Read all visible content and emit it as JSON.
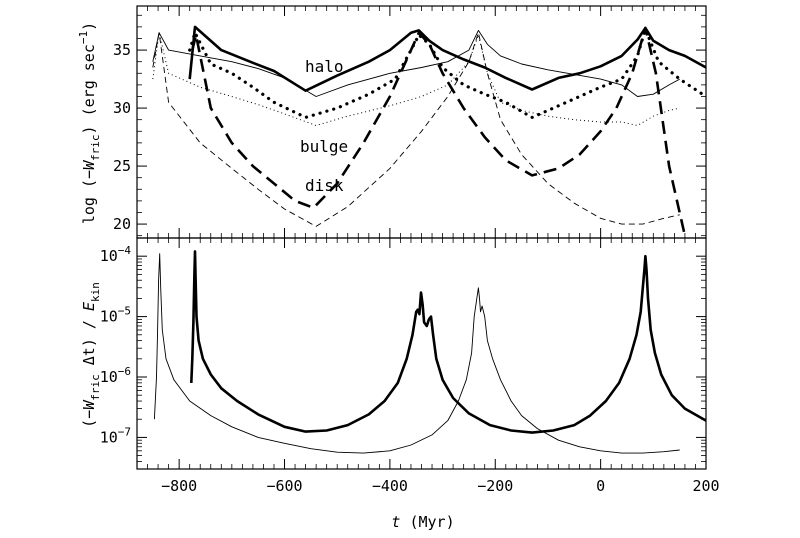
{
  "chart_data": [
    {
      "type": "line",
      "ylabel": "log (−W_fric) (erg sec⁻¹)",
      "ylabel_parts": {
        "pre": "log (−",
        "var": "W",
        "sub": "fric",
        "post": ") (erg sec",
        "sup": "−1",
        "close": ")"
      },
      "xlim": [
        -880,
        200
      ],
      "ylim": [
        18.8,
        38.8
      ],
      "y_ticks": [
        "20",
        "25",
        "30",
        "35"
      ],
      "y_tick_values": [
        20,
        25,
        30,
        35
      ],
      "x_tick_values": [
        -800,
        -600,
        -400,
        -200,
        0,
        200
      ],
      "annotations": [
        "halo",
        "bulge",
        "disk"
      ],
      "series": [
        {
          "style": "thick-solid",
          "x": [
            -780,
            -770,
            -720,
            -660,
            -620,
            -560,
            -500,
            -440,
            -400,
            -360,
            -345,
            -325,
            -300,
            -260,
            -220,
            -180,
            -130,
            -80,
            -40,
            0,
            40,
            70,
            85,
            100,
            130,
            160,
            200
          ],
          "y": [
            32.5,
            37.0,
            35.0,
            33.9,
            33.2,
            31.5,
            32.8,
            34.0,
            35.0,
            36.5,
            36.7,
            35.8,
            35.0,
            34.2,
            33.5,
            32.6,
            31.6,
            32.6,
            33.0,
            33.6,
            34.5,
            35.9,
            36.9,
            35.8,
            35.0,
            34.5,
            33.5
          ]
        },
        {
          "style": "thin-solid",
          "x": [
            -850,
            -838,
            -820,
            -760,
            -700,
            -650,
            -600,
            -540,
            -480,
            -400,
            -340,
            -290,
            -250,
            -232,
            -215,
            -190,
            -150,
            -100,
            -50,
            0,
            40,
            70,
            100,
            130,
            150
          ],
          "y": [
            34.0,
            36.5,
            35.0,
            34.5,
            34.0,
            33.4,
            32.6,
            31.0,
            32.0,
            33.0,
            33.5,
            34.0,
            35.0,
            36.7,
            35.5,
            34.5,
            33.8,
            33.3,
            32.9,
            32.5,
            32.0,
            31.0,
            31.2,
            32.0,
            32.5
          ]
        },
        {
          "style": "thick-dotted",
          "x": [
            -780,
            -770,
            -740,
            -700,
            -660,
            -620,
            -560,
            -500,
            -440,
            -390,
            -360,
            -345,
            -325,
            -300,
            -260,
            -220,
            -180,
            -130,
            -80,
            -40,
            0,
            40,
            70,
            85,
            110,
            150,
            200
          ],
          "y": [
            35.0,
            36.5,
            33.8,
            33.0,
            31.8,
            30.5,
            29.2,
            30.0,
            31.2,
            32.5,
            35.0,
            36.3,
            35.5,
            33.5,
            32.0,
            31.2,
            30.5,
            29.2,
            30.2,
            31.0,
            31.8,
            32.5,
            34.5,
            36.8,
            34.0,
            32.5,
            31.0
          ]
        },
        {
          "style": "thin-dotted",
          "x": [
            -850,
            -838,
            -820,
            -760,
            -700,
            -650,
            -600,
            -540,
            -480,
            -400,
            -340,
            -290,
            -250,
            -232,
            -215,
            -190,
            -150,
            -100,
            -50,
            0,
            40,
            70,
            100,
            130,
            150
          ],
          "y": [
            32.5,
            36.5,
            33.0,
            31.8,
            31.0,
            30.3,
            29.5,
            28.5,
            29.3,
            30.2,
            31.0,
            32.0,
            34.0,
            36.3,
            33.0,
            30.5,
            29.8,
            29.3,
            29.0,
            28.8,
            28.8,
            28.5,
            29.3,
            29.8,
            30.0
          ]
        },
        {
          "style": "thick-dashed",
          "x": [
            -775,
            -768,
            -740,
            -700,
            -660,
            -620,
            -580,
            -545,
            -500,
            -450,
            -400,
            -360,
            -345,
            -325,
            -300,
            -260,
            -220,
            -180,
            -130,
            -80,
            -40,
            0,
            30,
            60,
            85,
            105,
            130,
            160
          ],
          "y": [
            35.0,
            36.3,
            30.0,
            27.0,
            25.0,
            23.5,
            22.0,
            21.4,
            23.5,
            27.0,
            31.0,
            35.0,
            36.5,
            35.5,
            33.0,
            30.0,
            27.5,
            25.5,
            24.2,
            24.8,
            26.0,
            28.0,
            30.0,
            33.0,
            36.9,
            33.0,
            25.0,
            19.0
          ]
        },
        {
          "style": "thin-dashed",
          "x": [
            -850,
            -838,
            -820,
            -760,
            -700,
            -650,
            -600,
            -540,
            -480,
            -400,
            -340,
            -290,
            -250,
            -232,
            -215,
            -190,
            -150,
            -100,
            -50,
            0,
            40,
            80,
            120,
            150
          ],
          "y": [
            33.5,
            36.5,
            30.5,
            27.0,
            24.8,
            23.0,
            21.3,
            19.8,
            21.5,
            24.8,
            28.0,
            31.0,
            34.0,
            36.5,
            33.0,
            29.0,
            26.0,
            23.5,
            21.8,
            20.5,
            20.0,
            20.0,
            20.5,
            20.8
          ]
        }
      ]
    },
    {
      "type": "line",
      "xlabel": "t (Myr)",
      "xlabel_parts": {
        "var": "t",
        "unit": " (Myr)"
      },
      "ylabel": "(−W_fric Δt) / E_kin",
      "ylabel_parts": {
        "pre": "(−",
        "var": "W",
        "sub": "fric",
        "mid": " Δt) / ",
        "var2": "E",
        "sub2": "kin"
      },
      "y_scale": "log",
      "xlim": [
        -880,
        200
      ],
      "ylim": [
        3e-08,
        0.0002
      ],
      "x_ticks": [
        "−800",
        "−600",
        "−400",
        "−200",
        "0",
        "200"
      ],
      "x_tick_values": [
        -800,
        -600,
        -400,
        -200,
        0,
        200
      ],
      "y_tick_values": [
        1e-07,
        1e-06,
        1e-05,
        0.0001
      ],
      "y_ticks": [
        {
          "base": "10",
          "exp": "−7"
        },
        {
          "base": "10",
          "exp": "−6"
        },
        {
          "base": "10",
          "exp": "−5"
        },
        {
          "base": "10",
          "exp": "−4"
        }
      ],
      "series": [
        {
          "style": "thick-solid",
          "x": [
            -777,
            -775,
            -773,
            -771,
            -770,
            -769,
            -767,
            -763,
            -755,
            -740,
            -720,
            -690,
            -650,
            -600,
            -560,
            -520,
            -480,
            -440,
            -410,
            -385,
            -368,
            -357,
            -350,
            -347,
            -344,
            -341,
            -338,
            -335,
            -330,
            -326,
            -322,
            -318,
            -312,
            -300,
            -280,
            -250,
            -210,
            -170,
            -130,
            -90,
            -50,
            -20,
            10,
            35,
            55,
            68,
            76,
            80,
            83,
            85,
            87,
            90,
            95,
            103,
            115,
            135,
            160,
            200
          ],
          "y": [
            8e-07,
            2e-06,
            8e-06,
            5e-05,
            0.00012,
            5e-05,
            1e-05,
            4e-06,
            2e-06,
            1.1e-06,
            6.5e-07,
            4e-07,
            2.4e-07,
            1.5e-07,
            1.25e-07,
            1.3e-07,
            1.6e-07,
            2.4e-07,
            4e-07,
            8e-07,
            2e-06,
            5e-06,
            1.2e-05,
            1.3e-05,
            1.1e-05,
            2.5e-05,
            1.6e-05,
            8e-06,
            7e-06,
            9e-06,
            1e-05,
            5e-06,
            2e-06,
            9e-07,
            4.5e-07,
            2.5e-07,
            1.6e-07,
            1.3e-07,
            1.2e-07,
            1.3e-07,
            1.6e-07,
            2.3e-07,
            4e-07,
            8e-07,
            2e-06,
            5e-06,
            1.2e-05,
            3e-05,
            6e-05,
            0.0001,
            6e-05,
            2e-05,
            6e-06,
            2.5e-06,
            1.1e-06,
            5e-07,
            3e-07,
            1.9e-07
          ]
        },
        {
          "style": "thin-solid",
          "x": [
            -847,
            -843,
            -841,
            -839,
            -837,
            -835,
            -832,
            -825,
            -810,
            -780,
            -740,
            -700,
            -650,
            -600,
            -550,
            -500,
            -450,
            -400,
            -360,
            -320,
            -290,
            -270,
            -255,
            -245,
            -240,
            -235,
            -232,
            -230,
            -228,
            -225,
            -220,
            -215,
            -205,
            -190,
            -170,
            -150,
            -120,
            -80,
            -40,
            0,
            40,
            80,
            120,
            150
          ],
          "y": [
            2e-07,
            1e-06,
            5e-06,
            4e-05,
            0.00011,
            3e-05,
            6e-06,
            2e-06,
            9e-07,
            4e-07,
            2.3e-07,
            1.5e-07,
            1e-07,
            8e-08,
            6.5e-08,
            5.7e-08,
            5.5e-08,
            6e-08,
            7.5e-08,
            1.1e-07,
            1.9e-07,
            4e-07,
            9e-07,
            2.5e-06,
            1e-05,
            2e-05,
            3e-05,
            2e-05,
            1.2e-05,
            1.5e-05,
            1e-05,
            4e-06,
            2e-06,
            9e-07,
            4e-07,
            2.3e-07,
            1.4e-07,
            9e-08,
            7e-08,
            6e-08,
            5.5e-08,
            5.5e-08,
            5.8e-08,
            6.2e-08
          ]
        }
      ]
    }
  ]
}
